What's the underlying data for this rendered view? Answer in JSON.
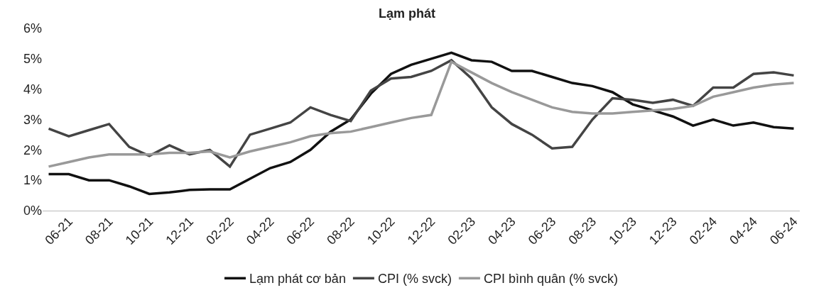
{
  "chart_data": {
    "type": "line",
    "title": "Lạm phát",
    "categories": [
      null,
      "06-21",
      null,
      "08-21",
      null,
      "10-21",
      null,
      "12-21",
      null,
      "02-22",
      null,
      "04-22",
      null,
      "06-22",
      null,
      "08-22",
      null,
      "10-22",
      null,
      "12-22",
      null,
      "02-23",
      null,
      "04-23",
      null,
      "06-23",
      null,
      "08-23",
      null,
      "10-23",
      null,
      "12-23",
      null,
      "02-24",
      null,
      "04-24",
      null,
      "06-24"
    ],
    "ylim": [
      0,
      6
    ],
    "yticks": [
      {
        "value": 0,
        "label": "0%"
      },
      {
        "value": 1,
        "label": "1%"
      },
      {
        "value": 2,
        "label": "2%"
      },
      {
        "value": 3,
        "label": "3%"
      },
      {
        "value": 4,
        "label": "4%"
      },
      {
        "value": 5,
        "label": "5%"
      },
      {
        "value": 6,
        "label": "6%"
      }
    ],
    "legend": "bottom",
    "marker": "none",
    "line_style": "solid",
    "series": [
      {
        "name": "Lạm phát cơ bản",
        "color": "#111111",
        "values": [
          1.2,
          1.2,
          1.0,
          1.0,
          0.8,
          0.55,
          0.6,
          0.68,
          0.7,
          0.7,
          1.05,
          1.4,
          1.6,
          2.0,
          2.6,
          3.0,
          3.85,
          4.5,
          4.8,
          5.0,
          5.2,
          4.95,
          4.9,
          4.6,
          4.6,
          4.4,
          4.2,
          4.1,
          3.9,
          3.5,
          3.3,
          3.1,
          2.8,
          3.0,
          2.8,
          2.9,
          2.75,
          2.7
        ]
      },
      {
        "name": "CPI (% svck)",
        "color": "#444444",
        "values": [
          2.7,
          2.45,
          2.65,
          2.85,
          2.1,
          1.8,
          2.15,
          1.85,
          2.0,
          1.45,
          2.5,
          2.7,
          2.9,
          3.4,
          3.15,
          2.95,
          3.95,
          4.35,
          4.4,
          4.6,
          4.95,
          4.35,
          3.4,
          2.85,
          2.5,
          2.05,
          2.1,
          3.0,
          3.7,
          3.65,
          3.55,
          3.65,
          3.45,
          4.05,
          4.05,
          4.5,
          4.55,
          4.45
        ]
      },
      {
        "name": "CPI bình quân (% svck)",
        "color": "#999999",
        "values": [
          1.45,
          1.6,
          1.75,
          1.85,
          1.85,
          1.85,
          1.9,
          1.9,
          1.95,
          1.75,
          1.95,
          2.1,
          2.25,
          2.45,
          2.55,
          2.6,
          2.75,
          2.9,
          3.05,
          3.15,
          4.9,
          4.55,
          4.2,
          3.9,
          3.65,
          3.4,
          3.25,
          3.2,
          3.2,
          3.25,
          3.3,
          3.35,
          3.45,
          3.75,
          3.9,
          4.05,
          4.15,
          4.2
        ]
      }
    ]
  }
}
